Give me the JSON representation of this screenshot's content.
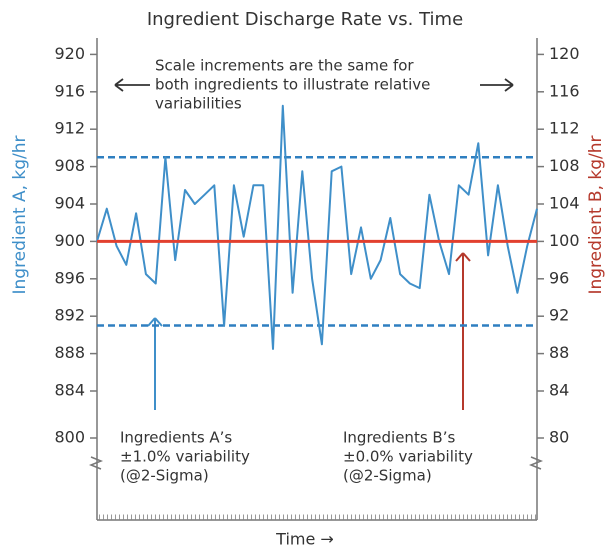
{
  "chart_data": {
    "type": "line",
    "title": "Ingredient Discharge Rate vs. Time",
    "xlabel": "Time →",
    "ylabel": "Ingredient A, kg/hr",
    "y2label": "Ingredient B, kg/hr",
    "ylim": [
      800,
      922
    ],
    "yticks": [
      920,
      916,
      912,
      908,
      904,
      900,
      896,
      892,
      888,
      884,
      800
    ],
    "ybreak": [
      800,
      884
    ],
    "y2lim": [
      80,
      122
    ],
    "y2ticks": [
      120,
      116,
      112,
      108,
      104,
      100,
      96,
      92,
      88,
      84,
      80
    ],
    "y2break": [
      80,
      84
    ],
    "series": [
      {
        "color": "#3f8fc9",
        "values": [
          900,
          903.5,
          899.5,
          897.5,
          903,
          896.5,
          895.5,
          909,
          898,
          905.5,
          904,
          905,
          906,
          891,
          906,
          900.5,
          906,
          906,
          888.5,
          914.5,
          894.5,
          907.5,
          896,
          889,
          907.5,
          908,
          896.5,
          901.5,
          896,
          898,
          902.5,
          896.5,
          895.5,
          895,
          905,
          900,
          896.5,
          906,
          905,
          910.5,
          898.5,
          906,
          899.5,
          894.5,
          899.5,
          903.5
        ]
      },
      {
        "color": "#e2402f",
        "axis": "y2",
        "values": [
          100,
          100
        ]
      }
    ],
    "reference_lines": [
      {
        "value": 909,
        "color": "#2f7fc0"
      },
      {
        "value": 891,
        "color": "#2f7fc0"
      }
    ],
    "annotations": {
      "top": [
        "Scale increments are the same for",
        "both ingredients to illustrate relative",
        "variabilities"
      ],
      "a": [
        "Ingredients A’s",
        "±1.0% variability",
        "(@2-Sigma)"
      ],
      "b": [
        "Ingredients B’s",
        "±0.0% variability",
        "(@2-Sigma)"
      ]
    }
  }
}
